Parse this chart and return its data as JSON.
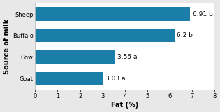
{
  "categories": [
    "Goat",
    "Cow",
    "Buffalo",
    "Sheep"
  ],
  "values": [
    3.03,
    3.55,
    6.2,
    6.91
  ],
  "labels": [
    "3.03 a",
    "3.55 a",
    "6.2 b",
    "6.91 b"
  ],
  "bar_color": "#1b7ea8",
  "xlabel": "Fat (%)",
  "ylabel": "Source of milk",
  "xlim": [
    0,
    8
  ],
  "xticks": [
    0,
    1,
    2,
    3,
    4,
    5,
    6,
    7,
    8
  ],
  "background_color": "#e8e8e8",
  "plot_bg_color": "#ffffff",
  "label_fontsize": 6.5,
  "axis_label_fontsize": 7,
  "tick_fontsize": 6
}
